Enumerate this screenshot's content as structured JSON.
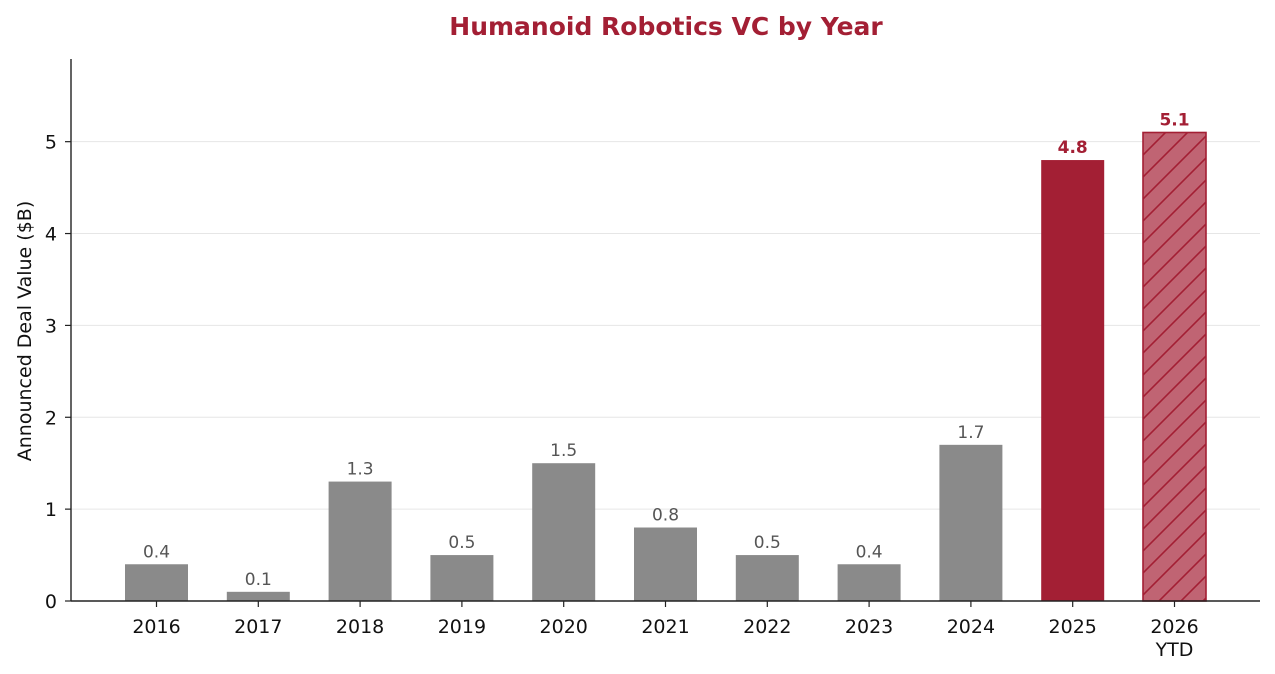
{
  "chart_data": {
    "type": "bar",
    "title": "Humanoid Robotics VC by Year",
    "ylabel": "Announced Deal Value ($B)",
    "xlabel": "",
    "categories": [
      "2016",
      "2017",
      "2018",
      "2019",
      "2020",
      "2021",
      "2022",
      "2023",
      "2024",
      "2025",
      "2026\nYTD"
    ],
    "values": [
      0.4,
      0.1,
      1.3,
      0.5,
      1.5,
      0.8,
      0.5,
      0.4,
      1.7,
      4.8,
      5.1
    ],
    "value_labels": [
      "0.4",
      "0.1",
      "1.3",
      "0.5",
      "1.5",
      "0.8",
      "0.5",
      "0.4",
      "1.7",
      "4.8",
      "5.1"
    ],
    "highlight_indices": [
      9
    ],
    "partial_indices": [
      10
    ],
    "ylim": [
      0,
      5.9
    ],
    "yticks": [
      0,
      1,
      2,
      3,
      4,
      5
    ],
    "grid": "y",
    "legend": "none",
    "colors": {
      "default_bar": "#8a8a8a",
      "highlight_bar": "#a31f34",
      "partial_fill": "#c06473",
      "partial_hatch": "#a31f34",
      "title": "#a31f34",
      "default_label": "#555555",
      "highlight_label": "#a31f34"
    }
  }
}
